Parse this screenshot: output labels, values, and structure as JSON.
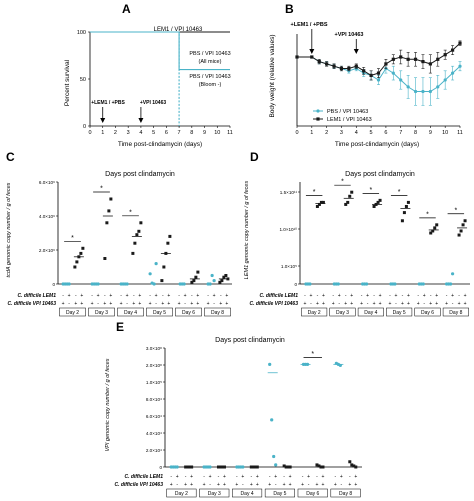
{
  "panels": [
    {
      "letter": "A"
    },
    {
      "letter": "B"
    },
    {
      "letter": "C"
    },
    {
      "letter": "D"
    },
    {
      "letter": "E"
    }
  ],
  "colors": {
    "lem1": "#1a1a1a",
    "vpi": "#4ab3c8",
    "pbs": "#4ab3c8"
  },
  "chart_data": [
    {
      "panel": "A",
      "type": "line",
      "xlabel": "Time post-clindamycin (days)",
      "ylabel": "Percent survival",
      "xlim": [
        0,
        11
      ],
      "ylim": [
        0,
        100
      ],
      "xticks": [
        "0",
        "1",
        "2",
        "3",
        "4",
        "5",
        "6",
        "7",
        "8",
        "9",
        "10",
        "11"
      ],
      "yticks": [
        "0",
        "50",
        "100"
      ],
      "arrow_labels": [
        "+LEM1 / +PBS",
        "+VPI 10463"
      ],
      "arrow_days": [
        1,
        4
      ],
      "series": [
        {
          "name": "LEM1 / VPI 10463",
          "style": "solid-black",
          "x": [
            0,
            11
          ],
          "y": [
            100,
            100
          ]
        },
        {
          "name": "PBS / VPI 10463",
          "label2": "(All mice)",
          "style": "solid-teal",
          "x": [
            0,
            7,
            7,
            11
          ],
          "y": [
            100,
            100,
            60,
            60
          ]
        },
        {
          "name": "PBS / VPI 10463",
          "label2": "(Bloom -)",
          "style": "dashed-teal",
          "x": [
            0,
            7,
            7
          ],
          "y": [
            100,
            100,
            0
          ]
        }
      ]
    },
    {
      "panel": "B",
      "type": "line",
      "xlabel": "Time post-clindamycin (days)",
      "ylabel": "Body weight (relative values)",
      "xlim": [
        0,
        11
      ],
      "ylim": [
        0,
        1.1
      ],
      "xticks": [
        "0",
        "1",
        "2",
        "3",
        "4",
        "5",
        "6",
        "7",
        "8",
        "9",
        "10",
        "11"
      ],
      "arrow_labels": [
        "+LEM1 / +PBS",
        "+VPI 10463"
      ],
      "arrow_days": [
        1,
        4
      ],
      "legend": [
        "PBS / VPI 10463",
        "LEM1 / VPI 10463"
      ],
      "series": [
        {
          "name": "PBS / VPI 10463",
          "color": "teal",
          "x": [
            0,
            1,
            1.5,
            2,
            2.5,
            3,
            3.5,
            4,
            4.5,
            5,
            5.5,
            6,
            6.5,
            7,
            7.5,
            8,
            8.5,
            9,
            9.5,
            10,
            10.5,
            11
          ],
          "y": [
            1.0,
            1.0,
            0.98,
            0.97,
            0.96,
            0.95,
            0.94,
            0.95,
            0.93,
            0.92,
            0.9,
            0.95,
            0.93,
            0.9,
            0.87,
            0.85,
            0.85,
            0.85,
            0.87,
            0.9,
            0.93,
            0.96
          ],
          "err": [
            0.005,
            0.005,
            0.01,
            0.01,
            0.01,
            0.01,
            0.01,
            0.01,
            0.015,
            0.02,
            0.02,
            0.02,
            0.03,
            0.04,
            0.05,
            0.06,
            0.06,
            0.06,
            0.05,
            0.04,
            0.03,
            0.02
          ]
        },
        {
          "name": "LEM1 / VPI 10463",
          "color": "black",
          "x": [
            0,
            1,
            1.5,
            2,
            2.5,
            3,
            3.5,
            4,
            4.5,
            5,
            5.5,
            6,
            6.5,
            7,
            7.5,
            8,
            8.5,
            9,
            9.5,
            10,
            10.5,
            11
          ],
          "y": [
            1.0,
            1.0,
            0.98,
            0.97,
            0.96,
            0.95,
            0.95,
            0.96,
            0.94,
            0.92,
            0.93,
            0.97,
            0.99,
            1.0,
            0.99,
            0.99,
            0.98,
            0.97,
            0.99,
            1.01,
            1.03,
            1.06
          ],
          "err": [
            0.005,
            0.005,
            0.01,
            0.01,
            0.01,
            0.01,
            0.01,
            0.01,
            0.015,
            0.02,
            0.02,
            0.02,
            0.02,
            0.03,
            0.03,
            0.03,
            0.03,
            0.04,
            0.03,
            0.02,
            0.02,
            0.01
          ]
        }
      ]
    },
    {
      "panel": "C",
      "type": "scatter",
      "title": "Days post clindamycin",
      "ylabel": "tcdA genomic copy number / g of feces",
      "ylim": [
        0,
        6000000
      ],
      "yticks": [
        "0",
        "2.0×10⁶",
        "4.0×10⁶",
        "6.0×10⁶"
      ],
      "yticks_values": [
        0,
        2000000,
        4000000,
        6000000
      ],
      "row_labels": [
        "C. difficile LEM1",
        "C. difficile VPI 10463"
      ],
      "signs": [
        [
          "-",
          "+",
          "-",
          "+"
        ]
      ],
      "groups": [
        {
          "day": "Day 2",
          "teal": [
            0,
            0,
            0,
            0
          ],
          "black": [
            1000000,
            1300000,
            1600000,
            1800000,
            2100000
          ],
          "black_mean": 1600000,
          "sig": true
        },
        {
          "day": "Day 3",
          "teal": [
            0,
            0,
            0,
            0
          ],
          "black": [
            1500000,
            3600000,
            4300000,
            5000000
          ],
          "black_mean": 4000000,
          "sig": true
        },
        {
          "day": "Day 4",
          "teal": [
            0,
            0,
            0,
            0
          ],
          "black": [
            1800000,
            2400000,
            2900000,
            3100000,
            3600000
          ],
          "black_mean": 2800000,
          "sig": true
        },
        {
          "day": "Day 5",
          "teal": [
            600000,
            50000,
            0,
            1200000
          ],
          "black": [
            200000,
            1000000,
            1800000,
            2400000,
            2800000
          ],
          "black_mean": 1800000,
          "sig": false
        },
        {
          "day": "Day 6",
          "teal": [
            0,
            0,
            0
          ],
          "black": [
            100000,
            200000,
            400000,
            700000
          ],
          "black_mean": 300000,
          "sig": false
        },
        {
          "day": "Day 8",
          "teal": [
            0,
            0,
            500000,
            200000
          ],
          "black": [
            100000,
            200000,
            400000,
            500000,
            300000
          ],
          "black_mean": 300000,
          "sig": false
        }
      ]
    },
    {
      "panel": "D",
      "type": "scatter",
      "title": "Days post clindamycin",
      "ylabel": "LEM1 genomic copy number / g of feces",
      "ylim": [
        0,
        150000000000.0
      ],
      "yticks": [
        "0",
        "1.0×10⁵",
        "1.0×10¹⁰",
        "1.5×10¹¹"
      ],
      "row_labels": [
        "C. difficile LEM1",
        "C. difficile VPI 10463"
      ],
      "groups": [
        {
          "day": "Day 2",
          "teal": [
            0,
            0,
            0
          ],
          "black": [
            0.76,
            0.78,
            0.8,
            0.8
          ],
          "black_mean": 0.79,
          "sig": true
        },
        {
          "day": "Day 3",
          "teal": [
            0,
            0,
            0
          ],
          "black": [
            0.78,
            0.8,
            0.86,
            0.9
          ],
          "black_mean": 0.84,
          "sig": true
        },
        {
          "day": "Day 4",
          "teal": [
            0,
            0,
            0
          ],
          "black": [
            0.76,
            0.78,
            0.8,
            0.82
          ],
          "black_mean": 0.78,
          "sig": true
        },
        {
          "day": "Day 5",
          "teal": [
            0,
            0,
            0
          ],
          "black": [
            0.62,
            0.7,
            0.76,
            0.8
          ],
          "black_mean": 0.74,
          "sig": true
        },
        {
          "day": "Day 6",
          "teal": [
            0,
            0,
            0
          ],
          "black": [
            0.5,
            0.52,
            0.55,
            0.58
          ],
          "black_mean": 0.53,
          "sig": true
        },
        {
          "day": "Day 8",
          "teal": [
            0,
            0,
            0,
            0.1
          ],
          "black": [
            0.48,
            0.52,
            0.58,
            0.62
          ],
          "black_mean": 0.55,
          "sig": true
        }
      ]
    },
    {
      "panel": "E",
      "type": "scatter",
      "title": "Days post clindamycin",
      "ylabel": "VPI genomic copy number / g of feces",
      "yticks": [
        "0",
        "2.0×10⁴",
        "4.0×10⁴",
        "6.0×10⁴",
        "8.0×10⁴",
        "1.0×10⁵",
        "2.0×10⁸",
        "3.0×10⁸"
      ],
      "row_labels": [
        "C. difficile LEM1",
        "C. difficile VPI 10463"
      ],
      "groups": [
        {
          "day": "Day 2",
          "teal": [
            0,
            0,
            0,
            0
          ],
          "black": [
            0,
            0,
            0,
            0
          ],
          "sig": false
        },
        {
          "day": "Day 3",
          "teal": [
            0,
            0,
            0,
            0
          ],
          "black": [
            0,
            0,
            0,
            0
          ],
          "sig": false
        },
        {
          "day": "Day 4",
          "teal": [
            0,
            0,
            0,
            0
          ],
          "black": [
            0,
            0,
            0,
            0
          ],
          "sig": false
        },
        {
          "day": "Day 5",
          "teal": [
            0.98,
            0.45,
            0.1,
            0.02
          ],
          "teal_mean": 0.9,
          "black": [
            0.01,
            0,
            0,
            0
          ],
          "sig": false
        },
        {
          "day": "Day 6",
          "teal": [
            0.98,
            0.98,
            0.98
          ],
          "teal_mean": 0.98,
          "black": [
            0.02,
            0.01,
            0,
            0
          ],
          "sig": true
        },
        {
          "day": "Day 8",
          "teal": [
            0.99,
            0.98,
            0.97
          ],
          "teal_mean": 0.98,
          "black": [
            0.05,
            0.02,
            0.01,
            0
          ],
          "sig": false
        }
      ]
    }
  ]
}
